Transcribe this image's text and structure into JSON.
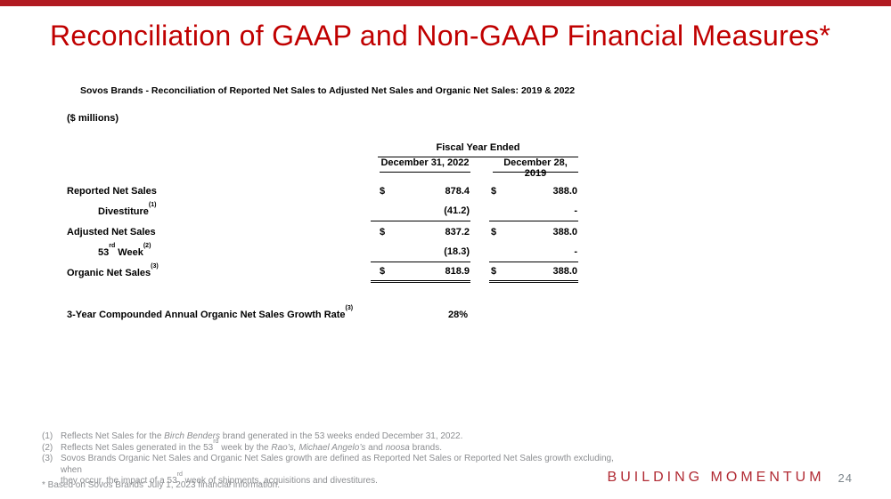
{
  "slide": {
    "title": "Reconciliation of GAAP and Non-GAAP Financial Measures*",
    "footer_brand": "BUILDING MOMENTUM",
    "page_number": "24",
    "accent_color": "#b11a21",
    "title_color": "#c00000"
  },
  "table": {
    "heading": "Sovos Brands - Reconciliation of Reported Net Sales to Adjusted Net Sales and Organic Net Sales: 2019 & 2022",
    "units": "($ millions)",
    "col_group_header": "Fiscal Year Ended",
    "columns": {
      "col2022": "December 31, 2022",
      "col2019": "December 28, 2019"
    },
    "rows": [
      {
        "label": "Reported Net Sales",
        "sup": "",
        "d1": "$",
        "v1": "878.4",
        "d2": "$",
        "v2": "388.0"
      },
      {
        "label": "Divestiture",
        "sup": "(1)",
        "d1": "",
        "v1": "(41.2)",
        "d2": "",
        "v2": "-"
      },
      {
        "label": "Adjusted Net Sales",
        "sup": "",
        "d1": "$",
        "v1": "837.2",
        "d2": "$",
        "v2": "388.0"
      },
      {
        "label_num": "53",
        "label_ord": "rd",
        "label_rest": " Week",
        "sup": "(2)",
        "d1": "",
        "v1": "(18.3)",
        "d2": "",
        "v2": "-"
      },
      {
        "label": "Organic Net Sales",
        "sup": "(3)",
        "d1": "$",
        "v1": "818.9",
        "d2": "$",
        "v2": "388.0"
      }
    ],
    "growth_row": {
      "label": "3-Year Compounded Annual Organic Net Sales Growth Rate",
      "sup": "(3)",
      "value": "28%"
    }
  },
  "footnotes": {
    "f1": {
      "num": "(1)",
      "pre": "Reflects Net Sales for the ",
      "italic": "Birch Benders",
      "post": " brand generated in the 53 weeks ended December 31, 2022."
    },
    "f2": {
      "num": "(2)",
      "pre": "Reflects Net Sales generated in the 53",
      "sup": "rd",
      "mid": " week by the ",
      "italic1": "Rao’s, Michael Angelo’s",
      "mid2": " and ",
      "italic2": "noosa",
      "post": " brands."
    },
    "f3": {
      "num": "(3)",
      "line1": "Sovos Brands Organic Net Sales and Organic Net Sales growth are defined as Reported Net Sales or Reported Net Sales growth excluding, when",
      "line2_pre": "they occur, the impact of a 53",
      "sup": "rd",
      "line2_post": " week of shipments, acquisitions and divestitures."
    }
  },
  "asterisk_note": "* Based on Sovos Brands’ July 1, 2023 financial information."
}
